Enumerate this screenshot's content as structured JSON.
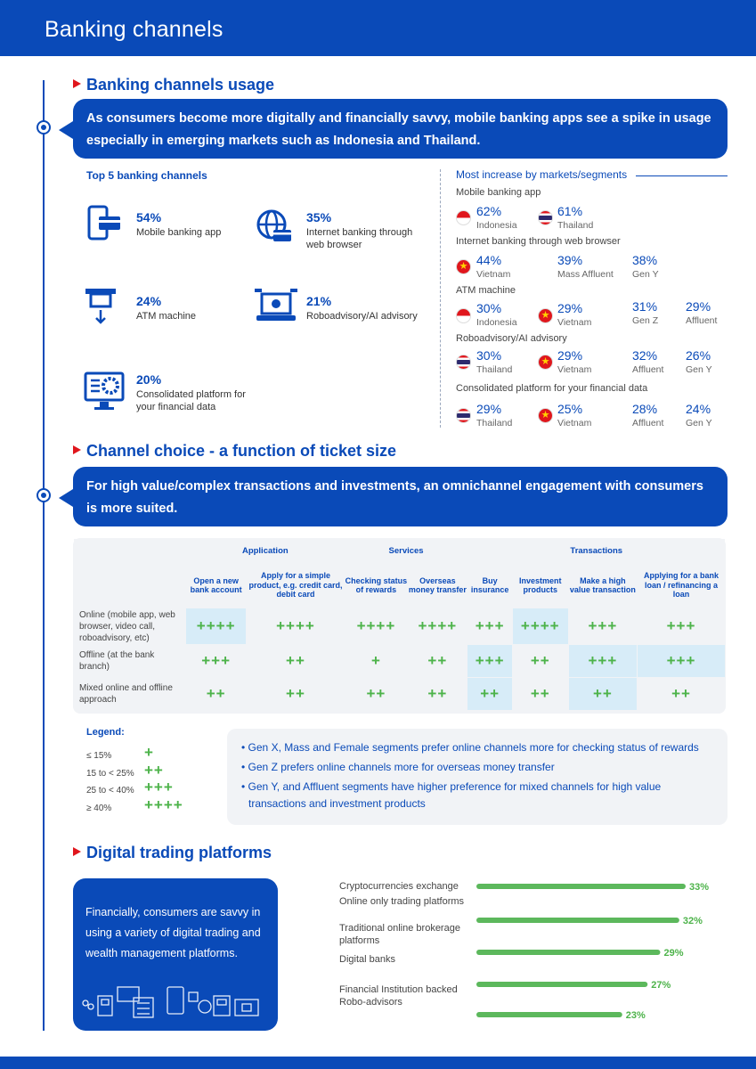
{
  "header": {
    "title": "Banking channels"
  },
  "section1": {
    "title": "Banking channels usage",
    "callout": "As consumers become more digitally and financially savvy, mobile banking apps see a spike in usage especially in emerging markets such as Indonesia and Thailand.",
    "top5_title": "Top 5 banking channels",
    "channels": [
      {
        "pct": "54%",
        "label": "Mobile banking app",
        "icon": "mobile-payment-icon"
      },
      {
        "pct": "35%",
        "label": "Internet banking through web browser",
        "icon": "globe-card-icon"
      },
      {
        "pct": "24%",
        "label": "ATM machine",
        "icon": "atm-icon"
      },
      {
        "pct": "21%",
        "label": "Roboadvisory/AI advisory",
        "icon": "robo-laptop-icon"
      },
      {
        "pct": "20%",
        "label": "Consolidated platform for your financial data",
        "icon": "gear-monitor-icon"
      }
    ],
    "most_increase": {
      "title": "Most increase by markets/segments",
      "categories": [
        {
          "name": "Mobile banking app",
          "items": [
            {
              "pct": "62%",
              "label": "Indonesia",
              "flag": "indonesia"
            },
            {
              "pct": "61%",
              "label": "Thailand",
              "flag": "thailand"
            }
          ]
        },
        {
          "name": "Internet banking through web browser",
          "items": [
            {
              "pct": "44%",
              "label": "Vietnam",
              "flag": "vietnam"
            },
            {
              "pct": "39%",
              "label": "Mass Affluent",
              "flag": ""
            },
            {
              "pct": "38%",
              "label": "Gen Y",
              "flag": ""
            }
          ]
        },
        {
          "name": "ATM machine",
          "items": [
            {
              "pct": "30%",
              "label": "Indonesia",
              "flag": "indonesia"
            },
            {
              "pct": "29%",
              "label": "Vietnam",
              "flag": "vietnam"
            },
            {
              "pct": "31%",
              "label": "Gen Z",
              "flag": ""
            },
            {
              "pct": "29%",
              "label": "Affluent",
              "flag": ""
            }
          ]
        },
        {
          "name": "Roboadvisory/AI advisory",
          "items": [
            {
              "pct": "30%",
              "label": "Thailand",
              "flag": "thailand"
            },
            {
              "pct": "29%",
              "label": "Vietnam",
              "flag": "vietnam"
            },
            {
              "pct": "32%",
              "label": "Affluent",
              "flag": ""
            },
            {
              "pct": "26%",
              "label": "Gen Y",
              "flag": ""
            }
          ]
        },
        {
          "name": "Consolidated platform for your financial data",
          "items": [
            {
              "pct": "29%",
              "label": "Thailand",
              "flag": "thailand"
            },
            {
              "pct": "25%",
              "label": "Vietnam",
              "flag": "vietnam"
            },
            {
              "pct": "28%",
              "label": "Affluent",
              "flag": ""
            },
            {
              "pct": "24%",
              "label": "Gen Y",
              "flag": ""
            }
          ]
        }
      ]
    }
  },
  "section2": {
    "title": "Channel choice - a function of ticket size",
    "callout": "For high value/complex transactions and investments, an omnichannel engagement with consumers is more suited.",
    "groups": [
      {
        "name": "Application",
        "span": 2
      },
      {
        "name": "Services",
        "span": 2
      },
      {
        "name": "Transactions",
        "span": 4
      }
    ],
    "columns": [
      "Open a new bank account",
      "Apply for a simple product, e.g. credit card, debit card",
      "Checking status of rewards",
      "Overseas money transfer",
      "Buy insurance",
      "Investment products",
      "Make a high value transaction",
      "Applying for a bank loan / refinancing a loan"
    ],
    "rows": [
      {
        "label": "Online (mobile app, web browser, video call, roboadvisory, etc)",
        "cells": [
          "++++",
          "++++",
          "++++",
          "++++",
          "+++",
          "++++",
          "+++",
          "+++"
        ],
        "highlight": [
          true,
          false,
          false,
          false,
          false,
          true,
          false,
          false
        ]
      },
      {
        "label": "Offline (at the bank branch)",
        "cells": [
          "+++",
          "++",
          "+",
          "++",
          "+++",
          "++",
          "+++",
          "+++"
        ],
        "highlight": [
          false,
          false,
          false,
          false,
          true,
          false,
          true,
          true
        ]
      },
      {
        "label": "Mixed online and offline approach",
        "cells": [
          "++",
          "++",
          "++",
          "++",
          "++",
          "++",
          "++",
          "++"
        ],
        "highlight": [
          false,
          false,
          false,
          false,
          true,
          false,
          true,
          false
        ]
      }
    ],
    "legend": {
      "title": "Legend:",
      "items": [
        {
          "range": "≤ 15%",
          "marks": "+"
        },
        {
          "range": "15 to < 25%",
          "marks": "++"
        },
        {
          "range": "25 to < 40%",
          "marks": "+++"
        },
        {
          "range": "≥ 40%",
          "marks": "++++"
        }
      ]
    },
    "notes": [
      "Gen X, Mass and Female segments prefer online channels more for checking status of rewards",
      "Gen Z prefers online channels more for overseas money transfer",
      "Gen Y, and Affluent segments have higher preference for mixed channels for high value transactions and investment products"
    ]
  },
  "section3": {
    "title": "Digital trading platforms",
    "box_text": "Financially, consumers are savvy in using a variety of digital trading and wealth management platforms.",
    "colors": {
      "bar": "#5cb85c",
      "value": "#4db34a"
    }
  },
  "chart_data": {
    "type": "bar",
    "orientation": "horizontal",
    "categories": [
      "Cryptocurrencies exchange",
      "Online only trading platforms",
      "Traditional online brokerage platforms",
      "Digital banks",
      "Financial Institution backed Robo-advisors"
    ],
    "values": [
      33,
      32,
      29,
      27,
      23
    ],
    "value_labels": [
      "33%",
      "32%",
      "29%",
      "27%",
      "23%"
    ],
    "title": "",
    "xlabel": "",
    "ylabel": ""
  },
  "colors": {
    "brand_blue": "#0a4ab8",
    "accent_red": "#e0161c",
    "plus_green": "#4db34a",
    "highlight": "#d7ecf8"
  }
}
